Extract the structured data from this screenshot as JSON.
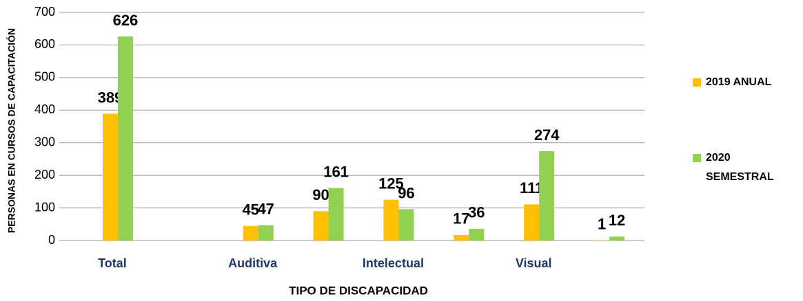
{
  "chart_data": {
    "type": "bar",
    "xlabel": "TIPO DE DISCAPACIDAD",
    "ylabel": "PERSONAS EN CURSOS DE CAPACITACIÓN",
    "categories": [
      "Total",
      null,
      "Auditiva",
      null,
      "Intelectual",
      null,
      "Visual",
      null
    ],
    "series": [
      {
        "name": "2019 ANUAL",
        "color": "#ffc000",
        "values": [
          389,
          null,
          45,
          90,
          125,
          17,
          111,
          1
        ]
      },
      {
        "name": "2020 SEMESTRAL",
        "color": "#92d050",
        "values": [
          626,
          null,
          47,
          161,
          96,
          36,
          274,
          12
        ]
      }
    ],
    "ylim": [
      0,
      700
    ],
    "yticks": [
      0,
      100,
      200,
      300,
      400,
      500,
      600,
      700
    ],
    "grid": true,
    "legend": "right"
  }
}
